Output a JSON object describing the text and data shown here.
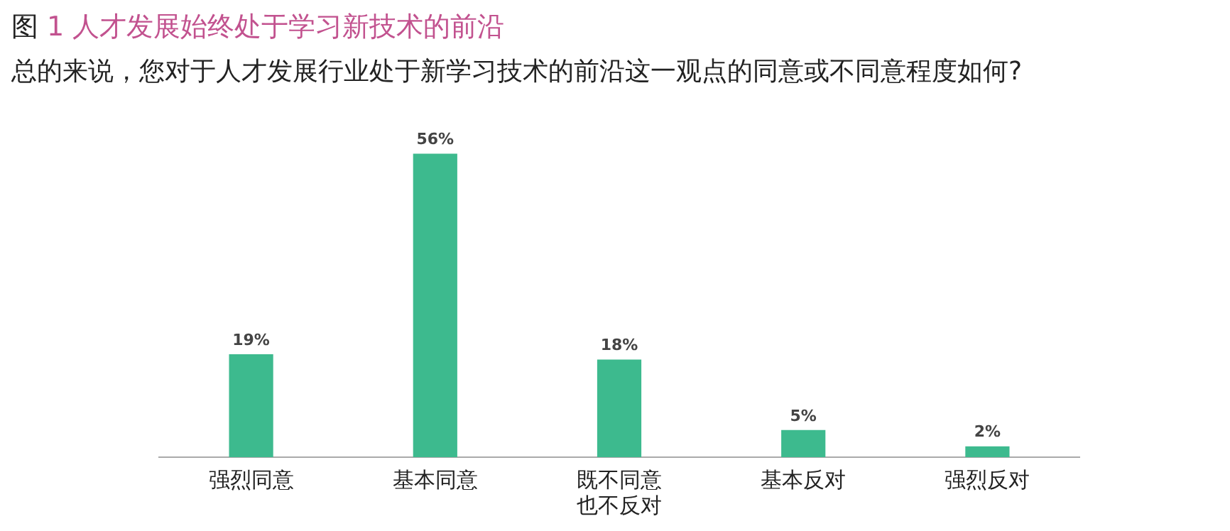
{
  "chart_data": {
    "type": "bar",
    "title": "图 1 人才发展始终处于学习新技术的前沿",
    "subtitle": "总的来说，您对于人才发展行业处于新学习技术的前沿这一观点的同意或不同意程度如何?",
    "categories": [
      "强烈同意",
      "基本同意",
      "既不同意也不反对",
      "基本反对",
      "强烈反对"
    ],
    "values": [
      19,
      56,
      18,
      5,
      2
    ],
    "value_labels": [
      "19%",
      "56%",
      "18%",
      "5%",
      "2%"
    ],
    "color": "#3dba8e",
    "grid": false,
    "legend": false
  }
}
